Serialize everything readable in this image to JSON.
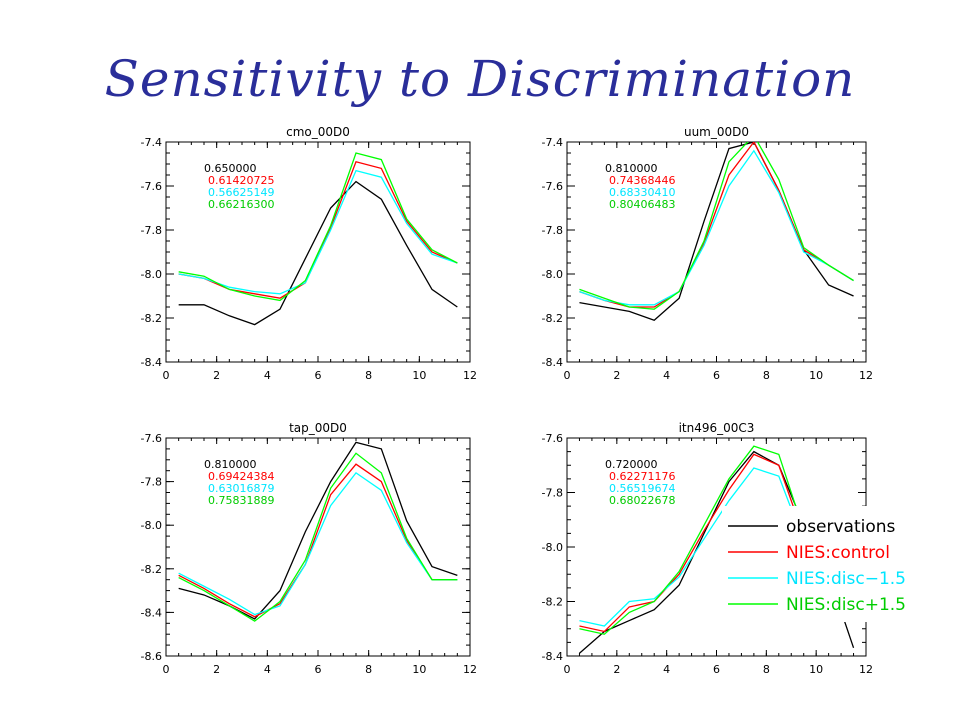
{
  "slide": {
    "title": "Sensitivity to Discrimination"
  },
  "legend": [
    {
      "label": "observations",
      "color": "#000000"
    },
    {
      "label": "NIES:control",
      "color": "#ff0000"
    },
    {
      "label": "NIES:disc−1.5",
      "color": "#00ffff"
    },
    {
      "label": "NIES:disc+1.5",
      "color": "#00ff00"
    }
  ],
  "chart_data": [
    {
      "type": "line",
      "title": "cmo_00D0",
      "xlim": [
        0,
        12
      ],
      "ylim": [
        -8.4,
        -7.4
      ],
      "xticks": [
        "0",
        "2",
        "4",
        "6",
        "8",
        "10",
        "12"
      ],
      "yticks": [
        "-8.4",
        "-8.2",
        "-8.0",
        "-7.8",
        "-7.6",
        "-7.4"
      ],
      "annotations": [
        "0.650000",
        "0.61420725",
        "0.56625149",
        "0.66216300"
      ],
      "x": [
        0.5,
        1.5,
        2.5,
        3.5,
        4.5,
        5.5,
        6.5,
        7.5,
        8.5,
        9.5,
        10.5,
        11.5
      ],
      "series": [
        {
          "color": "#000000",
          "values": [
            -8.14,
            -8.14,
            -8.19,
            -8.23,
            -8.16,
            -7.93,
            -7.7,
            -7.58,
            -7.66,
            -7.87,
            -8.07,
            -8.15
          ]
        },
        {
          "color": "#ff0000",
          "values": [
            -8.0,
            -8.02,
            -8.07,
            -8.09,
            -8.11,
            -8.04,
            -7.79,
            -7.49,
            -7.52,
            -7.76,
            -7.9,
            -7.95
          ]
        },
        {
          "color": "#00ffff",
          "values": [
            -8.0,
            -8.02,
            -8.06,
            -8.08,
            -8.09,
            -8.04,
            -7.8,
            -7.53,
            -7.56,
            -7.77,
            -7.91,
            -7.95
          ]
        },
        {
          "color": "#00ff00",
          "values": [
            -7.99,
            -8.01,
            -8.07,
            -8.1,
            -8.12,
            -8.03,
            -7.78,
            -7.45,
            -7.48,
            -7.75,
            -7.89,
            -7.95
          ]
        }
      ]
    },
    {
      "type": "line",
      "title": "uum_00D0",
      "xlim": [
        0,
        12
      ],
      "ylim": [
        -8.4,
        -7.4
      ],
      "xticks": [
        "0",
        "2",
        "4",
        "6",
        "8",
        "10",
        "12"
      ],
      "yticks": [
        "-8.4",
        "-8.2",
        "-8.0",
        "-7.8",
        "-7.6",
        "-7.4"
      ],
      "annotations": [
        "0.810000",
        "0.74368446",
        "0.68330410",
        "0.80406483"
      ],
      "x": [
        0.5,
        1.5,
        2.5,
        3.5,
        4.5,
        5.5,
        6.5,
        7.5,
        8.5,
        9.5,
        10.5,
        11.5
      ],
      "series": [
        {
          "color": "#000000",
          "values": [
            -8.13,
            -8.15,
            -8.17,
            -8.21,
            -8.11,
            -7.76,
            -7.43,
            -7.4,
            -7.62,
            -7.89,
            -8.05,
            -8.1
          ]
        },
        {
          "color": "#ff0000",
          "values": [
            -8.08,
            -8.12,
            -8.15,
            -8.15,
            -8.08,
            -7.86,
            -7.55,
            -7.4,
            -7.62,
            -7.89,
            -7.96,
            -8.03
          ]
        },
        {
          "color": "#00ffff",
          "values": [
            -8.08,
            -8.12,
            -8.14,
            -8.14,
            -8.08,
            -7.87,
            -7.6,
            -7.44,
            -7.63,
            -7.9,
            -7.96,
            -8.03
          ]
        },
        {
          "color": "#00ff00",
          "values": [
            -8.07,
            -8.11,
            -8.15,
            -8.16,
            -8.08,
            -7.85,
            -7.49,
            -7.37,
            -7.57,
            -7.88,
            -7.96,
            -8.03
          ]
        }
      ]
    },
    {
      "type": "line",
      "title": "tap_00D0",
      "xlim": [
        0,
        12
      ],
      "ylim": [
        -8.6,
        -7.6
      ],
      "xticks": [
        "0",
        "2",
        "4",
        "6",
        "8",
        "10",
        "12"
      ],
      "yticks": [
        "-8.6",
        "-8.4",
        "-8.2",
        "-8.0",
        "-7.8",
        "-7.6"
      ],
      "annotations": [
        "0.810000",
        "0.69424384",
        "0.63016879",
        "0.75831889"
      ],
      "x": [
        0.5,
        1.5,
        2.5,
        3.5,
        4.5,
        5.5,
        6.5,
        7.5,
        8.5,
        9.5,
        10.5,
        11.5
      ],
      "series": [
        {
          "color": "#000000",
          "values": [
            -8.29,
            -8.32,
            -8.37,
            -8.43,
            -8.3,
            -8.03,
            -7.8,
            -7.62,
            -7.65,
            -7.98,
            -8.19,
            -8.23
          ]
        },
        {
          "color": "#ff0000",
          "values": [
            -8.23,
            -8.29,
            -8.36,
            -8.42,
            -8.36,
            -8.18,
            -7.86,
            -7.72,
            -7.8,
            -8.07,
            -8.25,
            -8.25
          ]
        },
        {
          "color": "#00ffff",
          "values": [
            -8.22,
            -8.28,
            -8.34,
            -8.41,
            -8.37,
            -8.18,
            -7.91,
            -7.76,
            -7.84,
            -8.08,
            -8.25,
            -8.25
          ]
        },
        {
          "color": "#00ff00",
          "values": [
            -8.24,
            -8.3,
            -8.37,
            -8.44,
            -8.35,
            -8.16,
            -7.83,
            -7.67,
            -7.76,
            -8.06,
            -8.25,
            -8.25
          ]
        }
      ]
    },
    {
      "type": "line",
      "title": "itn496_00C3",
      "xlim": [
        0,
        12
      ],
      "ylim": [
        -8.4,
        -7.6
      ],
      "xticks": [
        "0",
        "2",
        "4",
        "6",
        "8",
        "10",
        "12"
      ],
      "yticks": [
        "-8.4",
        "-8.2",
        "-8.0",
        "-7.8",
        "-7.6"
      ],
      "annotations": [
        "0.720000",
        "0.62271176",
        "0.56519674",
        "0.68022678"
      ],
      "x": [
        0.5,
        1.5,
        2.5,
        3.5,
        4.5,
        5.5,
        6.5,
        7.5,
        8.5,
        9.5,
        10.5,
        11.5
      ],
      "series": [
        {
          "color": "#000000",
          "values": [
            -8.39,
            -8.31,
            -8.27,
            -8.23,
            -8.14,
            -7.95,
            -7.76,
            -7.65,
            -7.7,
            -7.92,
            -8.1,
            -8.37
          ]
        },
        {
          "color": "#ff0000",
          "values": [
            -8.29,
            -8.31,
            -8.22,
            -8.2,
            -8.1,
            -7.94,
            -7.79,
            -7.66,
            -7.7,
            -7.96,
            -8.1,
            -8.25
          ]
        },
        {
          "color": "#00ffff",
          "values": [
            -8.27,
            -8.29,
            -8.2,
            -8.19,
            -8.11,
            -7.97,
            -7.83,
            -7.71,
            -7.74,
            -7.98,
            -8.12,
            -8.26
          ]
        },
        {
          "color": "#00ff00",
          "values": [
            -8.3,
            -8.32,
            -8.24,
            -8.2,
            -8.09,
            -7.92,
            -7.75,
            -7.63,
            -7.66,
            -7.94,
            -8.08,
            -8.23
          ]
        }
      ]
    }
  ]
}
